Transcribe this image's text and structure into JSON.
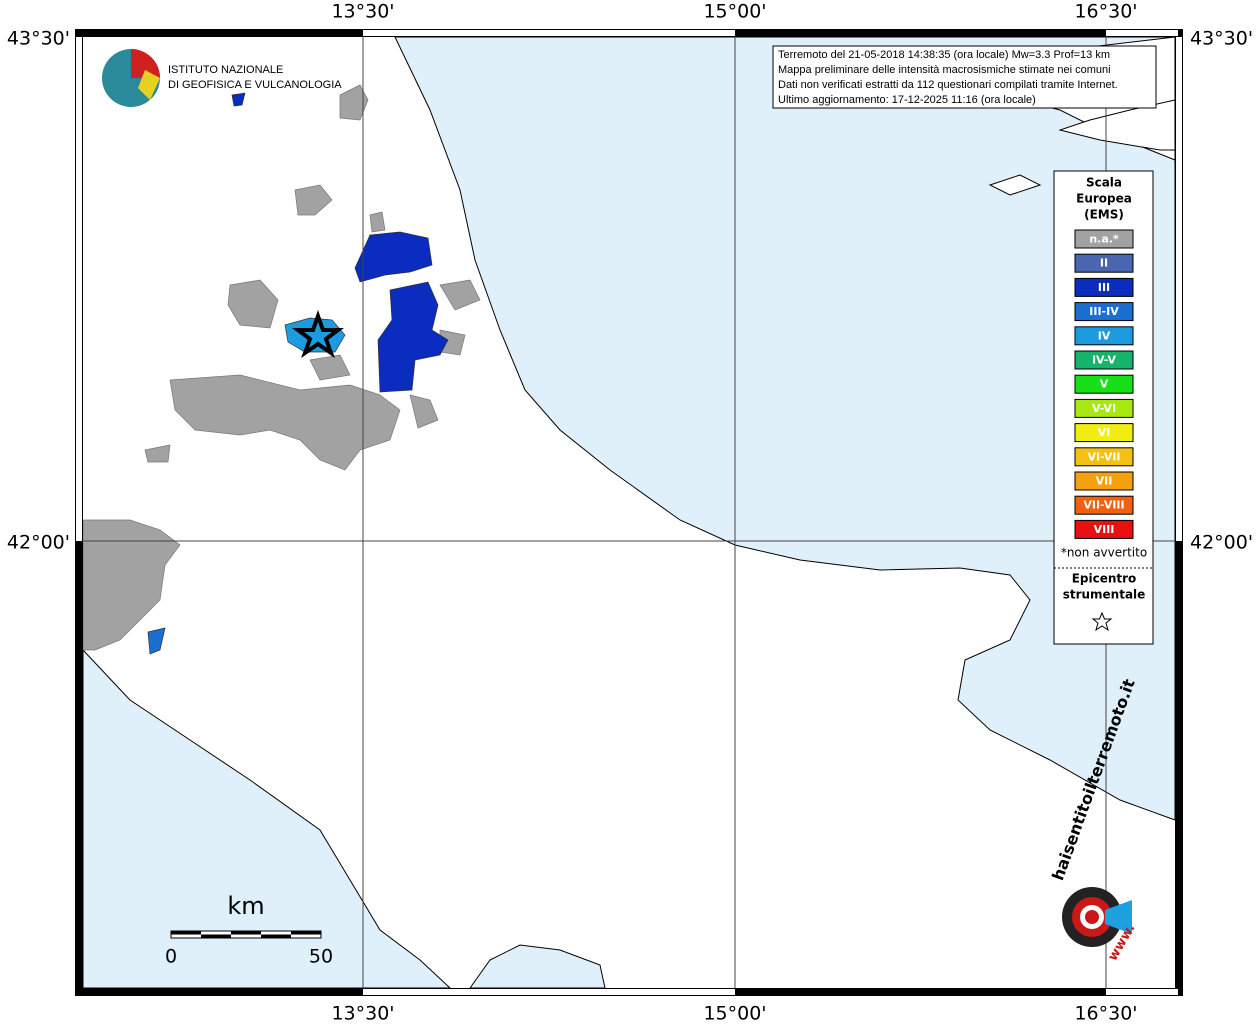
{
  "map": {
    "lon_labels": [
      "13°30'",
      "15°00'",
      "16°30'"
    ],
    "lat_labels": [
      "43°30'",
      "42°00'"
    ],
    "institute": [
      "ISTITUTO NAZIONALE",
      "DI GEOFISICA E VULCANOLOGIA"
    ],
    "info_box": [
      "Terremoto del 21-05-2018 14:38:35 (ora locale) Mw=3.3 Prof=13 km",
      "Mappa preliminare delle intensità macrosismiche stimate nei comuni",
      "Dati non verificati estratti da 112 questionari compilati tramite Internet.",
      "Ultimo aggiornamento: 17-12-2025 11:16 (ora locale)"
    ],
    "legend": {
      "title": [
        "Scala",
        "Europea",
        "(EMS)"
      ],
      "entries": [
        {
          "label": "n.a.*",
          "color": "#a2a2a2"
        },
        {
          "label": "II",
          "color": "#4a66b0"
        },
        {
          "label": "III",
          "color": "#0a2cbf"
        },
        {
          "label": "III-IV",
          "color": "#1a6fd0"
        },
        {
          "label": "IV",
          "color": "#1c9be0"
        },
        {
          "label": "IV-V",
          "color": "#16b46a"
        },
        {
          "label": "V",
          "color": "#18e018"
        },
        {
          "label": "V-VI",
          "color": "#a8e810"
        },
        {
          "label": "VI",
          "color": "#f2ee12"
        },
        {
          "label": "VI-VII",
          "color": "#f4c014"
        },
        {
          "label": "VII",
          "color": "#f4a010"
        },
        {
          "label": "VII-VIII",
          "color": "#f06010"
        },
        {
          "label": "VIII",
          "color": "#e81010"
        }
      ],
      "note": "*non avvertito",
      "epicenter": [
        "Epicentro",
        "strumentale"
      ]
    },
    "scale_bar": {
      "unit": "km",
      "labels": [
        "0",
        "50"
      ]
    },
    "logo": [
      "haisentitoilterremoto.it",
      "www."
    ]
  }
}
